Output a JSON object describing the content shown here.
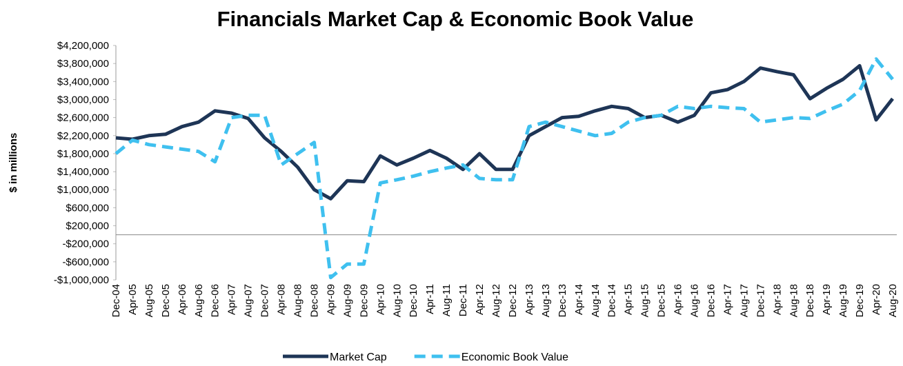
{
  "chart_data": {
    "type": "line",
    "title": "Financials Market Cap & Economic Book Value",
    "y_label": "$ in millions",
    "categories": [
      "Dec-04",
      "Apr-05",
      "Aug-05",
      "Dec-05",
      "Apr-06",
      "Aug-06",
      "Dec-06",
      "Apr-07",
      "Aug-07",
      "Dec-07",
      "Apr-08",
      "Aug-08",
      "Dec-08",
      "Apr-09",
      "Aug-09",
      "Dec-09",
      "Apr-10",
      "Aug-10",
      "Dec-10",
      "Apr-11",
      "Aug-11",
      "Dec-11",
      "Apr-12",
      "Aug-12",
      "Dec-12",
      "Apr-13",
      "Aug-13",
      "Dec-13",
      "Apr-14",
      "Aug-14",
      "Dec-14",
      "Apr-15",
      "Aug-15",
      "Dec-15",
      "Apr-16",
      "Aug-16",
      "Dec-16",
      "Apr-17",
      "Aug-17",
      "Dec-17",
      "Apr-18",
      "Aug-18",
      "Dec-18",
      "Apr-19",
      "Aug-19",
      "Dec-19",
      "Apr-20",
      "Aug-20"
    ],
    "series": [
      {
        "name": "Market Cap",
        "color": "#1e3556",
        "dashed": false,
        "values": [
          2150000,
          2120000,
          2200000,
          2230000,
          2400000,
          2500000,
          2750000,
          2700000,
          2580000,
          2150000,
          1850000,
          1500000,
          1000000,
          800000,
          1200000,
          1180000,
          1750000,
          1550000,
          1700000,
          1870000,
          1700000,
          1450000,
          1800000,
          1450000,
          1450000,
          2200000,
          2400000,
          2600000,
          2630000,
          2750000,
          2850000,
          2800000,
          2600000,
          2650000,
          2500000,
          2650000,
          3150000,
          3220000,
          3400000,
          3700000,
          3620000,
          3550000,
          3020000,
          3250000,
          3450000,
          3750000,
          2550000,
          3020000
        ]
      },
      {
        "name": "Economic Book Value",
        "color": "#3fc0ef",
        "dashed": true,
        "values": [
          1800000,
          2100000,
          2000000,
          1950000,
          1900000,
          1850000,
          1620000,
          2600000,
          2650000,
          2650000,
          1550000,
          1800000,
          2050000,
          -950000,
          -650000,
          -650000,
          1150000,
          1220000,
          1300000,
          1400000,
          1480000,
          1550000,
          1250000,
          1220000,
          1220000,
          2400000,
          2500000,
          2400000,
          2300000,
          2200000,
          2250000,
          2500000,
          2600000,
          2650000,
          2850000,
          2800000,
          2850000,
          2820000,
          2800000,
          2500000,
          2550000,
          2600000,
          2580000,
          2750000,
          2900000,
          3200000,
          3900000,
          3450000
        ]
      }
    ],
    "ylim": [
      -1000000,
      4200000
    ],
    "yticks": [
      {
        "value": -1000000,
        "label": "-$1,000,000"
      },
      {
        "value": -600000,
        "label": "-$600,000"
      },
      {
        "value": -200000,
        "label": "-$200,000"
      },
      {
        "value": 200000,
        "label": "$200,000"
      },
      {
        "value": 600000,
        "label": "$600,000"
      },
      {
        "value": 1000000,
        "label": "$1,000,000"
      },
      {
        "value": 1400000,
        "label": "$1,400,000"
      },
      {
        "value": 1800000,
        "label": "$1,800,000"
      },
      {
        "value": 2200000,
        "label": "$2,200,000"
      },
      {
        "value": 2600000,
        "label": "$2,600,000"
      },
      {
        "value": 3000000,
        "label": "$3,000,000"
      },
      {
        "value": 3400000,
        "label": "$3,400,000"
      },
      {
        "value": 3800000,
        "label": "$3,800,000"
      },
      {
        "value": 4200000,
        "label": "$4,200,000"
      }
    ],
    "grid": false,
    "legend": "bottom"
  }
}
